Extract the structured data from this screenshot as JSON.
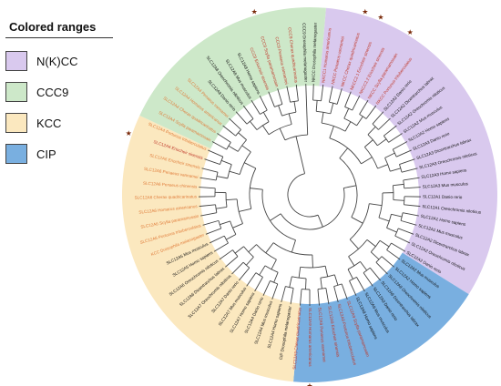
{
  "legend": {
    "title": "Colored ranges",
    "items": [
      {
        "label": "N(K)CC",
        "color": "#d9c9ee"
      },
      {
        "label": "CCC9",
        "color": "#cde8c9"
      },
      {
        "label": "KCC",
        "color": "#fbe8bf"
      },
      {
        "label": "CIP",
        "color": "#79afe0"
      }
    ]
  },
  "colors": {
    "branch": "#444444",
    "label_black": "#111111",
    "label_red": "#c0392b",
    "label_orange": "#e07b39",
    "star": "#7a2a0a"
  },
  "clades": [
    {
      "name": "N(K)CC",
      "startDeg": -85,
      "endDeg": 32,
      "color": "#d9c9ee"
    },
    {
      "name": "CIP",
      "startDeg": 32,
      "endDeg": 95,
      "color": "#79afe0"
    },
    {
      "name": "KCC",
      "startDeg": 95,
      "endDeg": 205,
      "color": "#fbe8bf"
    },
    {
      "name": "CCC9",
      "startDeg": 205,
      "endDeg": 275,
      "color": "#cde8c9"
    }
  ],
  "leaves": [
    {
      "label": "NKCC Drosophila melanogaster",
      "color": "black"
    },
    {
      "label": "NKCC1 Homarus americanus",
      "color": "red"
    },
    {
      "label": "NKCC Penaeus vannamei",
      "color": "red"
    },
    {
      "label": "NKCC Cherax quadricarinatus",
      "color": "red"
    },
    {
      "label": "NKCC2.1 Eriocheir sinensis",
      "color": "red"
    },
    {
      "label": "NKCC2.2 Eriocheir sinensis",
      "color": "red"
    },
    {
      "label": "NKCC Scylla paramamosain",
      "color": "red"
    },
    {
      "label": "NKCC Portunus trituberculatus",
      "color": "red"
    },
    {
      "label": "SLC12A2 Danio rerio",
      "color": "black"
    },
    {
      "label": "SLC12A2 Dicentrarchus labrax",
      "color": "black"
    },
    {
      "label": "SLC12A2 Oreochromis niloticus",
      "color": "black"
    },
    {
      "label": "SLC12A2 Mus musculus",
      "color": "black"
    },
    {
      "label": "SLC12A2 Homo sapiens",
      "color": "black"
    },
    {
      "label": "SLC12A3 Danio rerio",
      "color": "black"
    },
    {
      "label": "SLC12A3 Dicentrarchus labrax",
      "color": "black"
    },
    {
      "label": "SLC12A3 Oreochromis niloticus",
      "color": "black"
    },
    {
      "label": "SLC12A3 Homo sapiens",
      "color": "black"
    },
    {
      "label": "SLC12A3 Mus musculus",
      "color": "black"
    },
    {
      "label": "SLC12A1 Danio rerio",
      "color": "black"
    },
    {
      "label": "SLC12A1 Oreochromis niloticus",
      "color": "black"
    },
    {
      "label": "SLC12A1 Homo sapiens",
      "color": "black"
    },
    {
      "label": "SLC12A1 Mus musculus",
      "color": "black"
    },
    {
      "label": "SLC12A2 Dicentrarchus labrax",
      "color": "black"
    },
    {
      "label": "SLC12A2 Oreochromis niloticus",
      "color": "black"
    },
    {
      "label": "SLC12A2 Danio rerio",
      "color": "black"
    },
    {
      "label": "SLC12A2 Mus musculus",
      "color": "black"
    },
    {
      "label": "SLC12A2 Homo sapiens",
      "color": "black"
    },
    {
      "label": "SLC12A9 Oreochromis niloticus",
      "color": "black"
    },
    {
      "label": "SLC12A9 Dicentrarchus labrax",
      "color": "black"
    },
    {
      "label": "SLC12A9 Danio rerio",
      "color": "black"
    },
    {
      "label": "SLC12A9 Mus musculus",
      "color": "black"
    },
    {
      "label": "SLC12A9 Homo sapiens",
      "color": "black"
    },
    {
      "label": "SLC12A9 Scylla paramamosain",
      "color": "red"
    },
    {
      "label": "SLC12A9 Portunus trituberculatus",
      "color": "red"
    },
    {
      "label": "SLC12A9 Eriocheir sinensis",
      "color": "red"
    },
    {
      "label": "SLC12A9 Penaeus vannamei",
      "color": "red"
    },
    {
      "label": "SLC12A9 Homarus americanus",
      "color": "red"
    },
    {
      "label": "SLC12A9 Cherax quadricarinatus",
      "color": "red"
    },
    {
      "label": "CIP Drosophila melanogaster",
      "color": "black"
    },
    {
      "label": "SLC12A4 Homo sapiens",
      "color": "black"
    },
    {
      "label": "SLC12A4 Mus musculus",
      "color": "black"
    },
    {
      "label": "SLC12A4 Danio rerio",
      "color": "black"
    },
    {
      "label": "SLC12A7 Homo sapiens",
      "color": "black"
    },
    {
      "label": "SLC12A7 Mus musculus",
      "color": "black"
    },
    {
      "label": "SLC12A7 Danio rerio",
      "color": "black"
    },
    {
      "label": "SLC12A7 Oreochromis niloticus",
      "color": "black"
    },
    {
      "label": "SLC12A6 Dicentrarchus labrax",
      "color": "black"
    },
    {
      "label": "SLC12A6 Oreochromis niloticus",
      "color": "black"
    },
    {
      "label": "SLC12A5 Homo sapiens",
      "color": "black"
    },
    {
      "label": "SLC12A5 Mus musculus",
      "color": "black"
    },
    {
      "label": "KCC Drosophila melanogaster",
      "color": "orange"
    },
    {
      "label": "SLC12A6 Portunus trituberculatus",
      "color": "orange"
    },
    {
      "label": "SLC12A6 Scylla paramamosain",
      "color": "orange"
    },
    {
      "label": "SLC12A6 Homarus americanus",
      "color": "orange"
    },
    {
      "label": "SLC12A6 Cherax quadricarinatus",
      "color": "orange"
    },
    {
      "label": "SLC12A6 Penaeus chinensis",
      "color": "orange"
    },
    {
      "label": "SLC12A6 Penaeus vannamei",
      "color": "orange"
    },
    {
      "label": "SLC12A6 Eriocheir sinensis",
      "color": "orange"
    },
    {
      "label": "SLC12A4 Eriocheir sinensis",
      "color": "red"
    },
    {
      "label": "SLC12A4 Portunus trituberculatus",
      "color": "orange"
    },
    {
      "label": "SLC12A4 Scylla paramamosain",
      "color": "orange"
    },
    {
      "label": "SLC12A4 Cherax quadricarinatus",
      "color": "orange"
    },
    {
      "label": "SLC12A4 Homarus americanus",
      "color": "orange"
    },
    {
      "label": "SLC12A4 Penaeus vannamei",
      "color": "orange"
    },
    {
      "label": "SLC12A8 Danio rerio",
      "color": "black"
    },
    {
      "label": "SLC12A8 Oreochromis niloticus",
      "color": "black"
    },
    {
      "label": "SLC12A8 Mus musculus",
      "color": "black"
    },
    {
      "label": "SLC12A8 Homo sapiens",
      "color": "black"
    },
    {
      "label": "CCC9 Eriocheir sinensis",
      "color": "red"
    },
    {
      "label": "CCC9 Scylla paramamosain",
      "color": "red"
    },
    {
      "label": "CCC9 Penaeus vannamei",
      "color": "red"
    },
    {
      "label": "CCC9 Cherax quadricarinatus",
      "color": "red"
    },
    {
      "label": "CCC9 Drosophila melanogaster",
      "color": "black"
    }
  ],
  "stars_at_leaf": [
    3,
    4,
    6,
    36,
    58,
    69
  ]
}
